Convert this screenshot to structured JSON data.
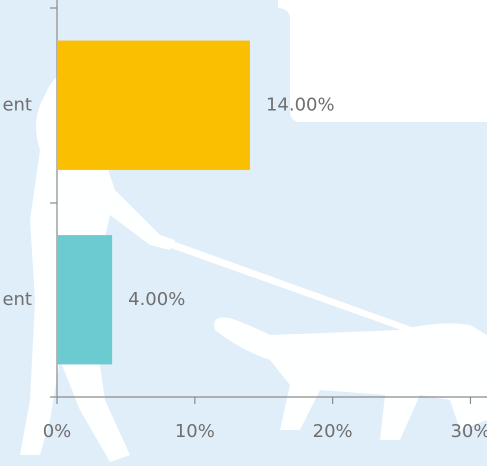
{
  "chart_data": {
    "type": "bar",
    "orientation": "horizontal",
    "categories": [
      "ent",
      "ent"
    ],
    "values": [
      14,
      4
    ],
    "value_labels": [
      "14.00%",
      "4.00%"
    ],
    "colors": [
      "#f9bf00",
      "#6ccbd0"
    ],
    "xlim": [
      0,
      31.2
    ],
    "xticks": [
      {
        "value": 0,
        "label": "0%"
      },
      {
        "value": 10,
        "label": "10%"
      },
      {
        "value": 20,
        "label": "20%"
      },
      {
        "value": 30,
        "label": "30%"
      }
    ]
  }
}
